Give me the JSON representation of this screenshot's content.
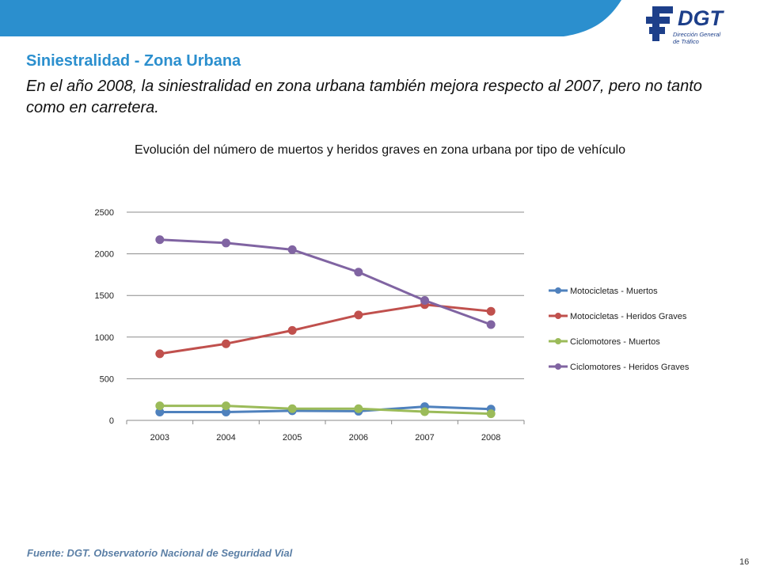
{
  "slide": {
    "title": "Siniestralidad - Zona Urbana",
    "subtitle": "En el año 2008, la siniestralidad en zona urbana también mejora respecto al 2007, pero no tanto como en carretera.",
    "source": "Fuente: DGT. Observatorio Nacional de Seguridad Vial",
    "page_number": "16"
  },
  "logo": {
    "name": "DGT",
    "subtitle": "Dirección General\nde Tráfico"
  },
  "colors": {
    "band": "#2b8fce",
    "title": "#2b8fce",
    "logo": "#1d3f8a"
  },
  "chart_data": {
    "type": "line",
    "title": "Evolución del número de muertos y heridos graves en zona urbana por tipo de vehículo",
    "categories": [
      "2003",
      "2004",
      "2005",
      "2006",
      "2007",
      "2008"
    ],
    "ylim": [
      0,
      2500
    ],
    "yticks": [
      0,
      500,
      1000,
      1500,
      2000,
      2500
    ],
    "grid": true,
    "legend": "right",
    "series": [
      {
        "name": "Motocicletas - Muertos",
        "color": "#4f81bd",
        "values": [
          100,
          100,
          115,
          110,
          165,
          135
        ]
      },
      {
        "name": "Motocicletas - Heridos Graves",
        "color": "#c0504d",
        "values": [
          800,
          920,
          1080,
          1265,
          1390,
          1310
        ]
      },
      {
        "name": "Ciclomotores - Muertos",
        "color": "#9bbb59",
        "values": [
          175,
          175,
          140,
          140,
          105,
          80
        ]
      },
      {
        "name": "Ciclomotores - Heridos Graves",
        "color": "#8064a2",
        "values": [
          2170,
          2130,
          2050,
          1780,
          1440,
          1150
        ]
      }
    ]
  }
}
